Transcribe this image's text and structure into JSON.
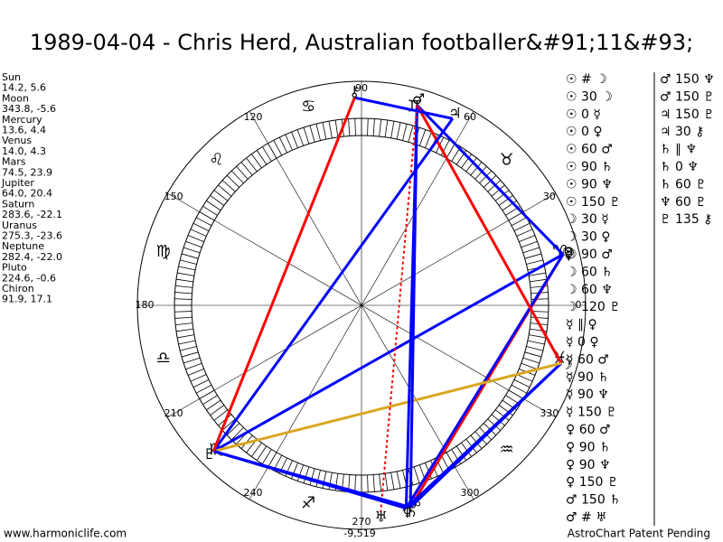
{
  "title": "1989-04-04 - Chris Herd, Australian footballer&#91;11&#93;",
  "planets": [
    {
      "name": "Sun",
      "coords": "14.2, 5.6",
      "glyph": "☉"
    },
    {
      "name": "Moon",
      "coords": "343.8, -5.6",
      "glyph": "☽"
    },
    {
      "name": "Mercury",
      "coords": "13.6, 4.4",
      "glyph": "☿"
    },
    {
      "name": "Venus",
      "coords": "14.0, 4.3",
      "glyph": "♀"
    },
    {
      "name": "Mars",
      "coords": "74.5, 23.9",
      "glyph": "♂"
    },
    {
      "name": "Jupiter",
      "coords": "64.0, 20.4",
      "glyph": "♃"
    },
    {
      "name": "Saturn",
      "coords": "283.6, -22.1",
      "glyph": "♄"
    },
    {
      "name": "Uranus",
      "coords": "275.3, -23.6",
      "glyph": "♅"
    },
    {
      "name": "Neptune",
      "coords": "282.4, -22.0",
      "glyph": "♆"
    },
    {
      "name": "Pluto",
      "coords": "224.6, -0.6",
      "glyph": "♇"
    },
    {
      "name": "Chiron",
      "coords": "91.9, 17.1",
      "glyph": "⚷"
    }
  ],
  "signs": [
    "♈",
    "♉",
    "♊",
    "♋",
    "♌",
    "♍",
    "♎",
    "♏",
    "♐",
    "♑",
    "♒",
    "♓"
  ],
  "degree_labels": [
    "0",
    "30",
    "60",
    "90",
    "120",
    "150",
    "180",
    "210",
    "240",
    "270",
    "300",
    "330"
  ],
  "bottom_value": "-9,519",
  "aspects_col1": [
    "☉ # ☽",
    "☉ 30 ☽",
    "☉ 0 ☿",
    "☉ 0 ♀",
    "☉ 60 ♂",
    "☉ 90 ♄",
    "☉ 90 ♆",
    "☉ 150 ♇",
    "☽ 30 ☿",
    "☽ 30 ♀",
    "☽ 90 ♂",
    "☽ 60 ♄",
    "☽ 60 ♆",
    "☽ 120 ♇",
    "☿ ∥ ♀",
    "☿ 0 ♀",
    "☿ 60 ♂",
    "☿ 90 ♄",
    "☿ 90 ♆",
    "☿ 150 ♇",
    "♀ 60 ♂",
    "♀ 90 ♄",
    "♀ 90 ♆",
    "♀ 150 ♇",
    "♂ 150 ♄",
    "♂ # ♅"
  ],
  "aspects_col2": [
    "♂ 150 ♆",
    "♂ 150 ♇",
    "♃ 150 ♇",
    "♃ 30 ⚷",
    "♄ ∥ ♆",
    "♄ 0 ♆",
    "♄ 60 ♇",
    "♆ 60 ♇",
    "♇ 135 ⚷"
  ],
  "footer_left": "www.harmoniclife.com",
  "footer_right": "AstroChart Patent Pending"
}
